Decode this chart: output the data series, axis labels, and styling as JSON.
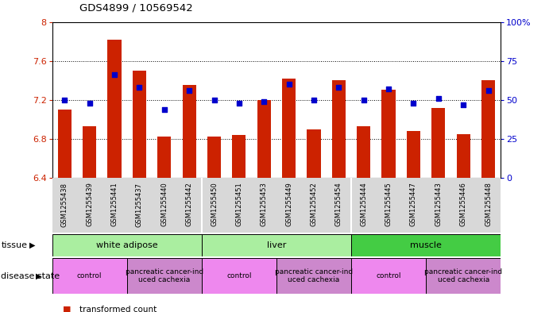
{
  "title": "GDS4899 / 10569542",
  "samples": [
    "GSM1255438",
    "GSM1255439",
    "GSM1255441",
    "GSM1255437",
    "GSM1255440",
    "GSM1255442",
    "GSM1255450",
    "GSM1255451",
    "GSM1255453",
    "GSM1255449",
    "GSM1255452",
    "GSM1255454",
    "GSM1255444",
    "GSM1255445",
    "GSM1255447",
    "GSM1255443",
    "GSM1255446",
    "GSM1255448"
  ],
  "red_values": [
    7.1,
    6.93,
    7.82,
    7.5,
    6.82,
    7.35,
    6.82,
    6.84,
    7.2,
    7.42,
    6.9,
    7.4,
    6.93,
    7.3,
    6.88,
    7.12,
    6.85,
    7.4
  ],
  "blue_values": [
    50,
    48,
    66,
    58,
    44,
    56,
    50,
    48,
    49,
    60,
    50,
    58,
    50,
    57,
    48,
    51,
    47,
    56
  ],
  "ylim_left": [
    6.4,
    8.0
  ],
  "ylim_right": [
    0,
    100
  ],
  "yticks_left": [
    6.4,
    6.8,
    7.2,
    7.6,
    8.0
  ],
  "ytick_labels_left": [
    "6.4",
    "6.8",
    "7.2",
    "7.6",
    "8"
  ],
  "yticks_right": [
    0,
    25,
    50,
    75,
    100
  ],
  "ytick_labels_right": [
    "0",
    "25",
    "50",
    "75",
    "100%"
  ],
  "bar_color": "#CC2200",
  "dot_color": "#0000CC",
  "grid_lines": [
    6.8,
    7.2,
    7.6
  ],
  "tissue_groups": [
    {
      "label": "white adipose",
      "start": 0,
      "end": 6,
      "color": "#AAEEA0"
    },
    {
      "label": "liver",
      "start": 6,
      "end": 12,
      "color": "#AAEEA0"
    },
    {
      "label": "muscle",
      "start": 12,
      "end": 18,
      "color": "#44CC44"
    }
  ],
  "disease_groups": [
    {
      "label": "control",
      "start": 0,
      "end": 3,
      "color": "#EE88EE"
    },
    {
      "label": "pancreatic cancer-ind\nuced cachexia",
      "start": 3,
      "end": 6,
      "color": "#CC88CC"
    },
    {
      "label": "control",
      "start": 6,
      "end": 9,
      "color": "#EE88EE"
    },
    {
      "label": "pancreatic cancer-ind\nuced cachexia",
      "start": 9,
      "end": 12,
      "color": "#CC88CC"
    },
    {
      "label": "control",
      "start": 12,
      "end": 15,
      "color": "#EE88EE"
    },
    {
      "label": "pancreatic cancer-ind\nuced cachexia",
      "start": 15,
      "end": 18,
      "color": "#CC88CC"
    }
  ]
}
